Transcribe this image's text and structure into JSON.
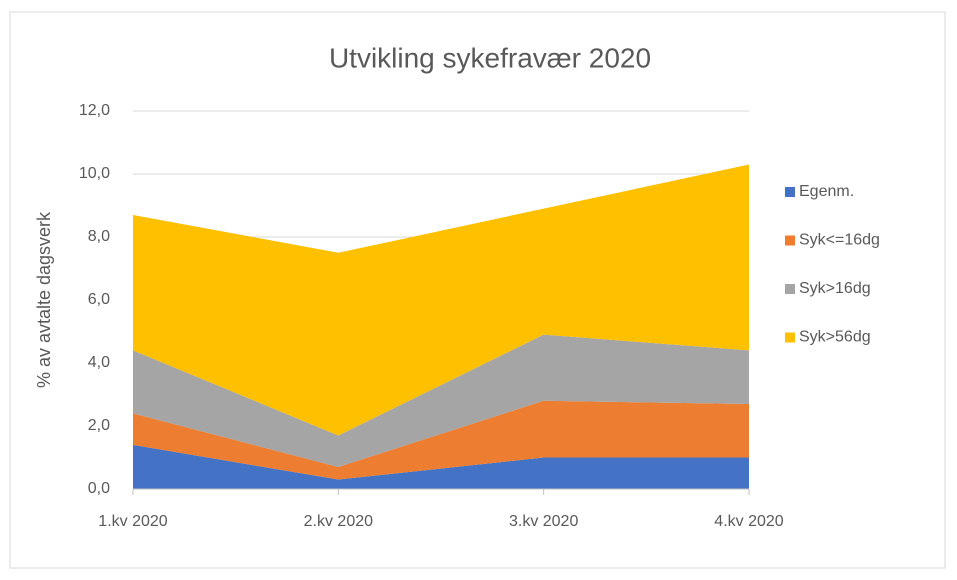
{
  "chart_data": {
    "type": "stacked_area",
    "title": "Utvikling sykefravær 2020",
    "y_label": "% av avtalte dagsverk",
    "categories": [
      "1.kv 2020",
      "2.kv 2020",
      "3.kv 2020",
      "4.kv 2020"
    ],
    "series": [
      {
        "name": "Egenm.",
        "color": "#4472c4",
        "values": [
          1.4,
          0.3,
          1.0,
          1.0
        ]
      },
      {
        "name": "Syk<=16dg",
        "color": "#ed7d31",
        "values": [
          1.0,
          0.4,
          1.8,
          1.7
        ]
      },
      {
        "name": "Syk>16dg",
        "color": "#a5a5a5",
        "values": [
          2.0,
          1.0,
          2.1,
          1.7
        ]
      },
      {
        "name": "Syk>56dg",
        "color": "#ffc000",
        "values": [
          4.3,
          5.8,
          4.0,
          5.9
        ]
      }
    ],
    "ylim": [
      0,
      12
    ],
    "yticks": [
      {
        "value": 0,
        "label": "0,0"
      },
      {
        "value": 2,
        "label": "2,0"
      },
      {
        "value": 4,
        "label": "4,0"
      },
      {
        "value": 6,
        "label": "6,0"
      },
      {
        "value": 8,
        "label": "8,0"
      },
      {
        "value": 10,
        "label": "10,0"
      },
      {
        "value": 12,
        "label": "12,0"
      }
    ],
    "grid": true,
    "legend": "right"
  }
}
